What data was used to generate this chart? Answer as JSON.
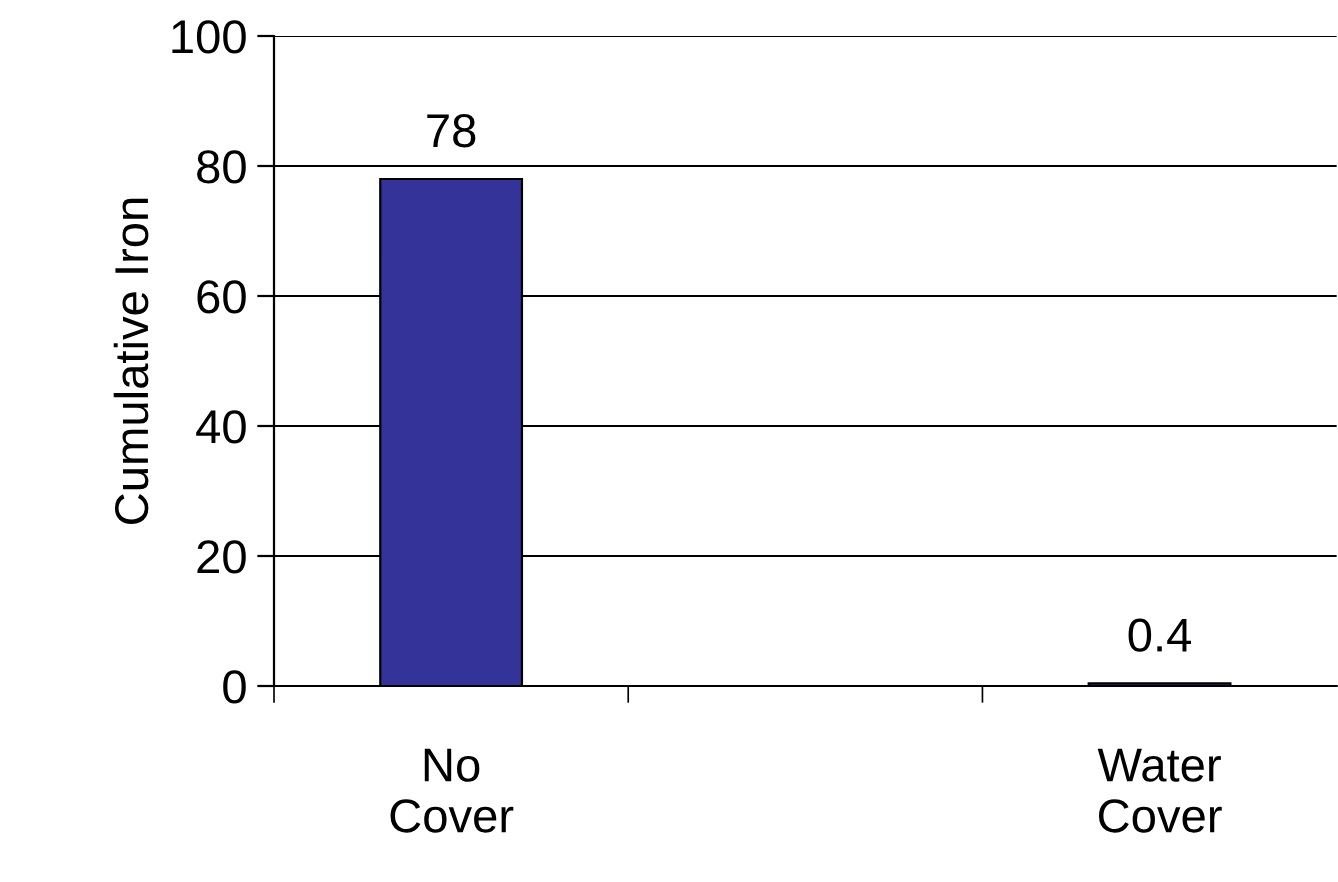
{
  "chart_data": {
    "type": "bar",
    "ylabel": "Cumulative Iron",
    "categories": [
      "No Cover",
      null,
      "Water Cover"
    ],
    "values": [
      78,
      null,
      0.4
    ],
    "color": "#333399",
    "ylim": [
      0,
      100
    ],
    "yticks": [
      0,
      20,
      40,
      60,
      80,
      100
    ],
    "grid": "y",
    "data_labels": true
  }
}
